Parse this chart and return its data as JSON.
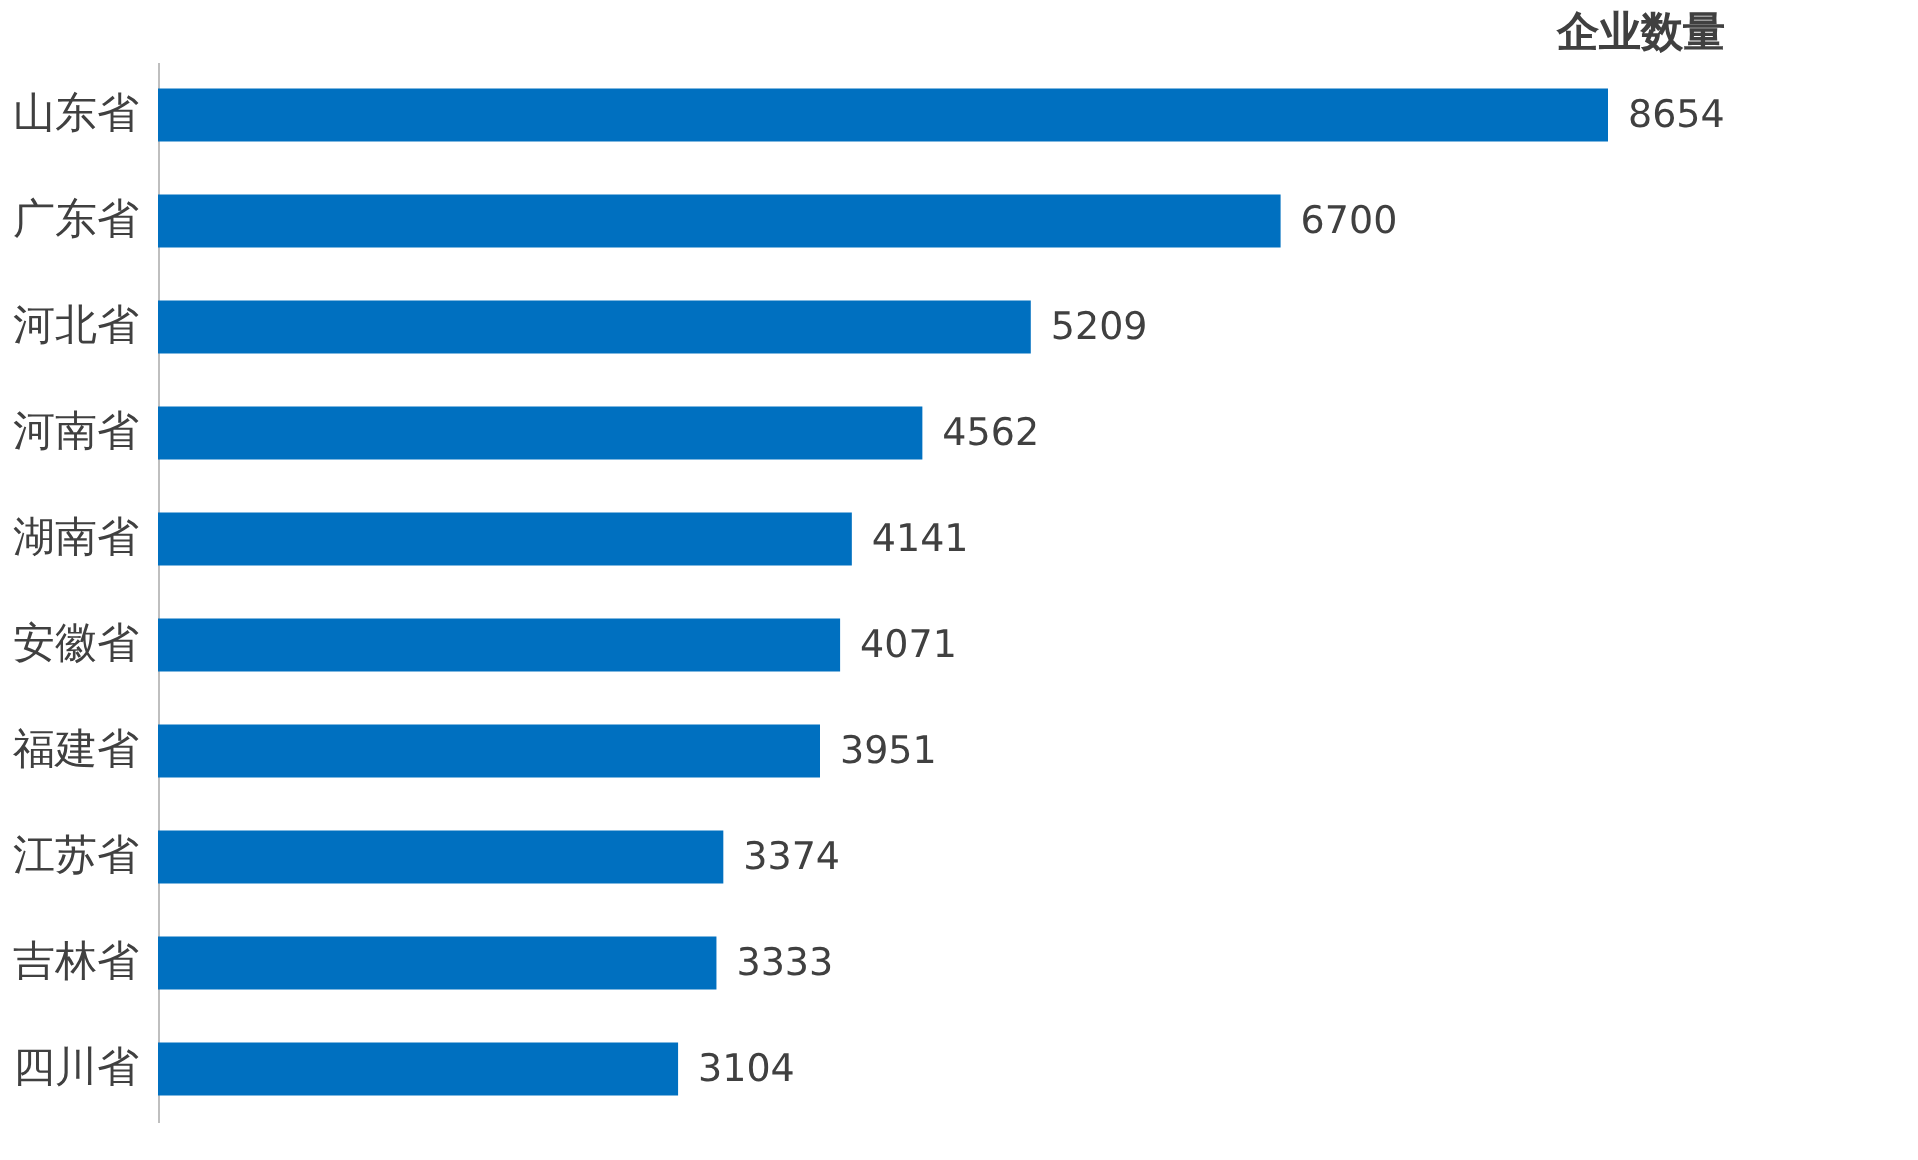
{
  "chart_data": {
    "type": "bar",
    "orientation": "horizontal",
    "title": "企业数量",
    "categories": [
      "山东省",
      "广东省",
      "河北省",
      "河南省",
      "湖南省",
      "安徽省",
      "福建省",
      "江苏省",
      "吉林省",
      "四川省"
    ],
    "values": [
      8654,
      6700,
      5209,
      4562,
      4141,
      4071,
      3951,
      3374,
      3333,
      3104
    ],
    "color": "#0070c0",
    "data_labels": true
  }
}
